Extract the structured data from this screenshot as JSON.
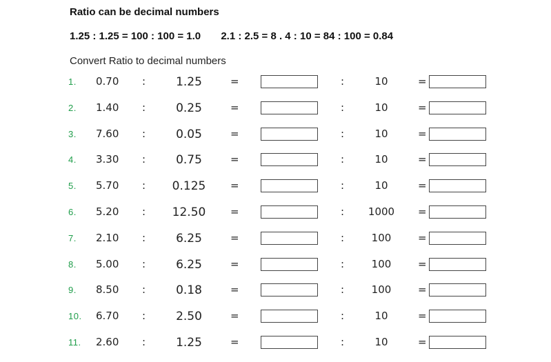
{
  "title": "Ratio can be decimal numbers",
  "examples": [
    "1.25 : 1.25 = 100 : 100 = 1.0",
    "2.1 : 2.5 = 8 . 4 : 10 = 84 : 100 = 0.84"
  ],
  "instruction": "Convert Ratio to decimal numbers",
  "symbols": {
    "colon": ":",
    "equals": "="
  },
  "rows": [
    {
      "num": "1.",
      "a": "0.70",
      "b": "1.25",
      "c": "10"
    },
    {
      "num": "2.",
      "a": "1.40",
      "b": "0.25",
      "c": "10"
    },
    {
      "num": "3.",
      "a": "7.60",
      "b": "0.05",
      "c": "10"
    },
    {
      "num": "4.",
      "a": "3.30",
      "b": "0.75",
      "c": "10"
    },
    {
      "num": "5.",
      "a": "5.70",
      "b": "0.125",
      "c": "10"
    },
    {
      "num": "6.",
      "a": "5.20",
      "b": "12.50",
      "c": "1000"
    },
    {
      "num": "7.",
      "a": "2.10",
      "b": "6.25",
      "c": "100"
    },
    {
      "num": "8.",
      "a": "5.00",
      "b": "6.25",
      "c": "100"
    },
    {
      "num": "9.",
      "a": "8.50",
      "b": "0.18",
      "c": "100"
    },
    {
      "num": "10.",
      "a": "6.70",
      "b": "2.50",
      "c": "10"
    },
    {
      "num": "11.",
      "a": "2.60",
      "b": "1.25",
      "c": "10"
    }
  ]
}
